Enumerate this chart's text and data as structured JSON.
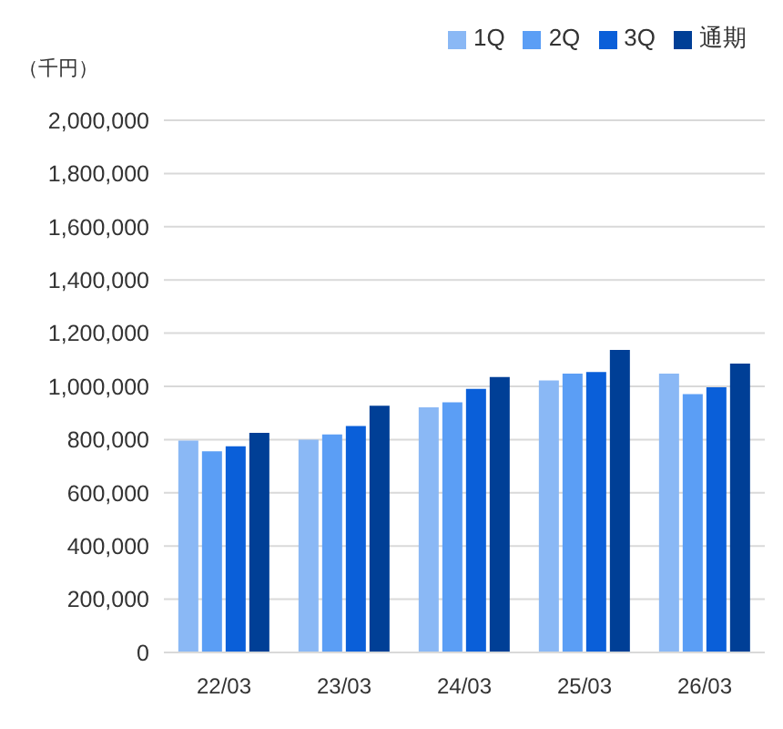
{
  "chart_data": {
    "type": "bar",
    "ylabel": "（千円）",
    "categories": [
      "22/03",
      "23/03",
      "24/03",
      "25/03",
      "26/03"
    ],
    "series": [
      {
        "name": "1Q",
        "color": "#8ab8f5",
        "values": [
          796000,
          800000,
          921000,
          1022000,
          1048000
        ]
      },
      {
        "name": "2Q",
        "color": "#5b9ef5",
        "values": [
          756000,
          819000,
          940000,
          1048000,
          971000
        ]
      },
      {
        "name": "3Q",
        "color": "#0a5fd9",
        "values": [
          775000,
          851000,
          991000,
          1054000,
          997000
        ]
      },
      {
        "name": "通期",
        "color": "#003f96",
        "values": [
          825000,
          927000,
          1035000,
          1137000,
          1086000
        ]
      }
    ],
    "ylim": [
      0,
      2000000
    ],
    "yticks": [
      0,
      {
        "value": 200000,
        "label": "200,000"
      },
      {
        "value": 400000,
        "label": "400,000"
      },
      {
        "value": 600000,
        "label": "600,000"
      },
      {
        "value": 800000,
        "label": "800,000"
      },
      {
        "value": 1000000,
        "label": "1,000,000"
      },
      {
        "value": 1200000,
        "label": "1,200,000"
      },
      {
        "value": 1400000,
        "label": "1,400,000"
      },
      {
        "value": 1600000,
        "label": "1,600,000"
      },
      {
        "value": 1800000,
        "label": "1,800,000"
      },
      {
        "value": 2000000,
        "label": "2,000,000"
      }
    ],
    "grid": "y",
    "legend": "top right"
  }
}
